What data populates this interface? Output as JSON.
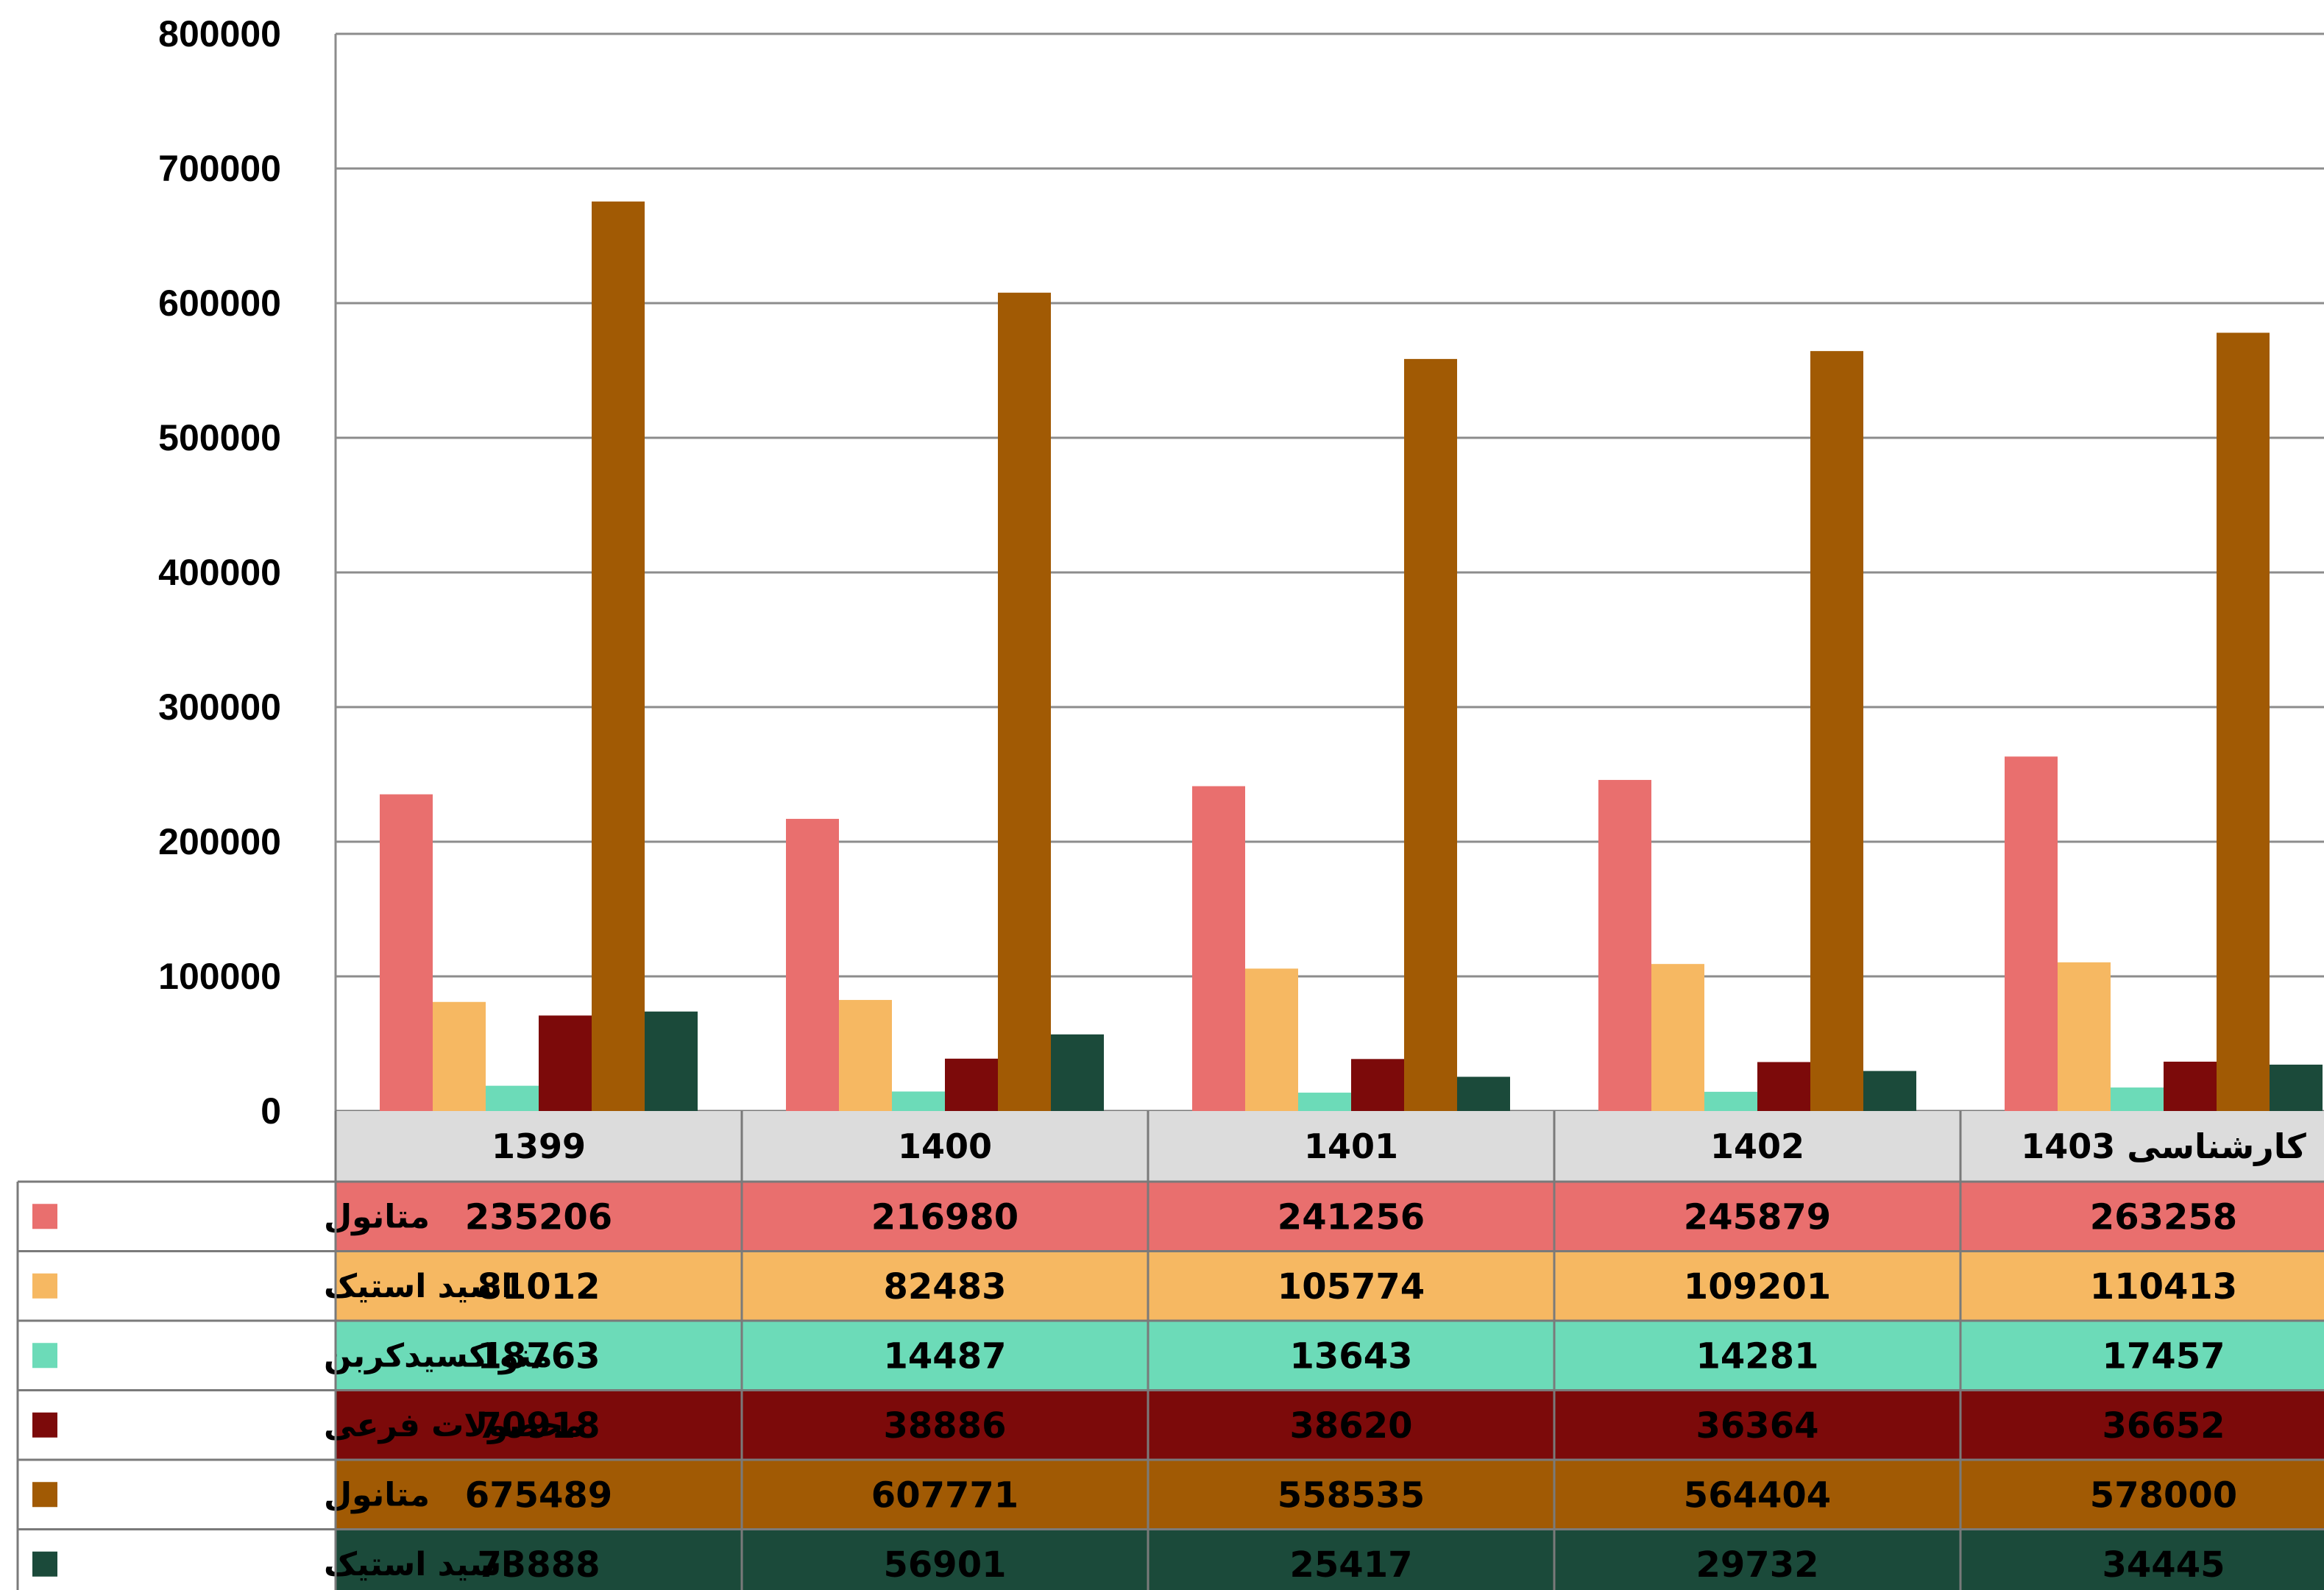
{
  "chart_data": {
    "type": "bar",
    "title": "",
    "xlabel": "",
    "ylabel": "",
    "ylim": [
      0,
      800000
    ],
    "yticks": [
      "0",
      "100000",
      "200000",
      "300000",
      "400000",
      "500000",
      "600000",
      "700000",
      "800000"
    ],
    "grid": true,
    "legend": "data-table-left",
    "categories": [
      "1399",
      "1400",
      "1401",
      "1402",
      "کارشناسی 1403"
    ],
    "series": [
      {
        "name": "متانول",
        "color": "#e96f6e",
        "values": [
          235206,
          216980,
          241256,
          245879,
          263258
        ],
        "labels": [
          "235206",
          "216980",
          "241256",
          "245879",
          "263258"
        ]
      },
      {
        "name": "اسید استیک",
        "color": "#f6b862",
        "values": [
          81012,
          82483,
          105774,
          109201,
          110413
        ],
        "labels": [
          "81012",
          "82483",
          "105774",
          "109201",
          "110413"
        ]
      },
      {
        "name": "منواکسیدکربن",
        "color": "#6cdbb8",
        "values": [
          18763,
          14487,
          13643,
          14281,
          17457
        ],
        "labels": [
          "18763",
          "14487",
          "13643",
          "14281",
          "17457"
        ]
      },
      {
        "name": "محصولات فرعی",
        "color": "#7c0a0a",
        "values": [
          70918,
          38886,
          38620,
          36364,
          36652
        ],
        "labels": [
          "70918",
          "38886",
          "38620",
          "36364",
          "36652"
        ]
      },
      {
        "name": "متانول",
        "color": "#a15a04",
        "values": [
          675489,
          607771,
          558535,
          564404,
          578000
        ],
        "labels": [
          "675489",
          "607771",
          "558535",
          "564404",
          "578000"
        ]
      },
      {
        "name": "اسید استیک",
        "color": "#1b4a3a",
        "values": [
          73888,
          56901,
          25417,
          29732,
          34445
        ],
        "labels": [
          "73888",
          "56901",
          "25417",
          "29732",
          "34445"
        ]
      }
    ]
  }
}
